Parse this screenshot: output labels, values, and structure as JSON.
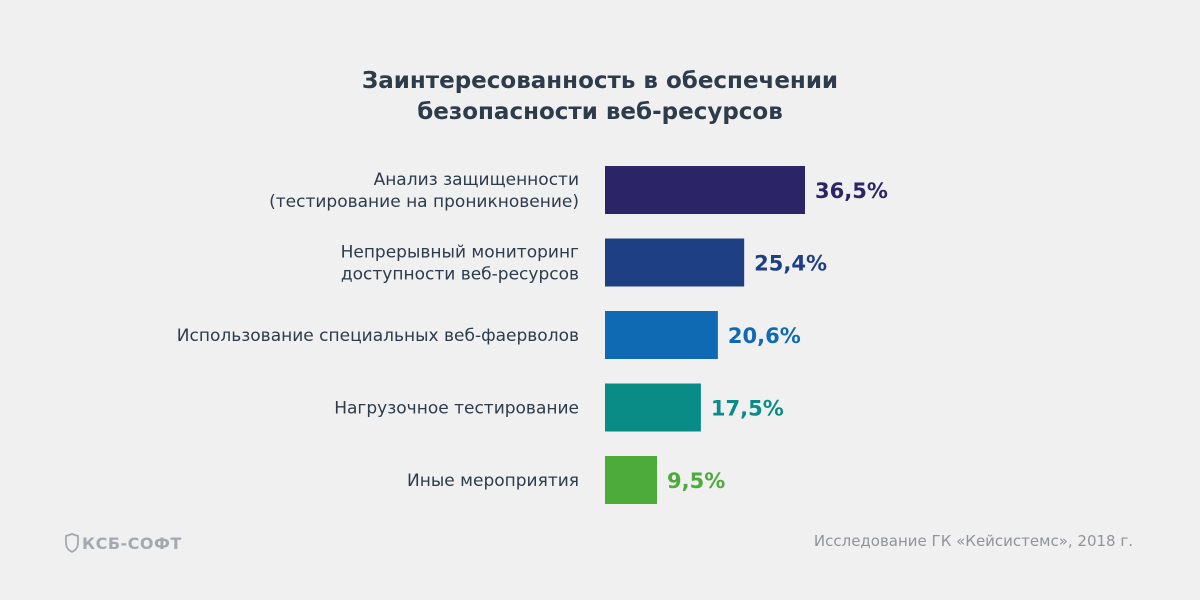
{
  "chart_data": {
    "type": "bar",
    "orientation": "horizontal",
    "title": [
      "Заинтересованность в обеспечении",
      "безопасности веб-ресурсов"
    ],
    "categories": [
      [
        "Анализ защищенности",
        "(тестирование на проникновение)"
      ],
      [
        "Непрерывный мониторинг",
        "доступности веб-ресурсов"
      ],
      [
        "Использование специальных веб-фаерволов"
      ],
      [
        "Нагрузочное тестирование"
      ],
      [
        "Иные мероприятия"
      ]
    ],
    "values": [
      36.5,
      25.4,
      20.6,
      17.5,
      9.5
    ],
    "value_labels": [
      "36,5%",
      "25,4%",
      "20,6%",
      "17,5%",
      "9,5%"
    ],
    "colors": [
      "#2b2466",
      "#1f3f85",
      "#0f69b3",
      "#0a8c86",
      "#4dab3c"
    ],
    "grid": false,
    "legend": "none"
  },
  "logo": {
    "text": "КСБ-СОФТ",
    "icon": "shield-icon"
  },
  "source": "Исследование ГК «Кейсистемс», 2018 г."
}
